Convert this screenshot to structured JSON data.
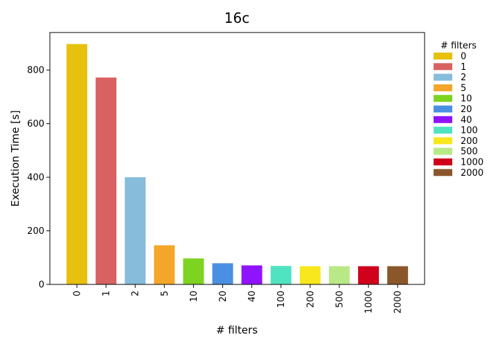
{
  "chart_data": {
    "type": "bar",
    "title": "16c",
    "xlabel": "# filters",
    "ylabel": "Execution Time [s]",
    "categories": [
      "0",
      "1",
      "2",
      "5",
      "10",
      "20",
      "40",
      "100",
      "200",
      "500",
      "1000",
      "2000"
    ],
    "values": [
      897,
      772,
      400,
      146,
      97,
      79,
      71,
      69,
      68,
      68,
      68,
      68
    ],
    "colors": [
      "#e8c00e",
      "#d86262",
      "#87bcdb",
      "#f4a62a",
      "#7ed321",
      "#4a90e2",
      "#9013fe",
      "#50e3c2",
      "#f8e71c",
      "#b8e986",
      "#d0021b",
      "#8b572a"
    ],
    "ylim": [
      0,
      940
    ],
    "yticks": [
      0,
      200,
      400,
      600,
      800
    ],
    "ytick_labels": [
      "0",
      "200",
      "400",
      "600",
      "800"
    ],
    "grid": false,
    "legend": {
      "title": "# filters",
      "placement": "outside-right-top",
      "entries": [
        "0",
        "1",
        "2",
        "5",
        "10",
        "20",
        "40",
        "100",
        "200",
        "500",
        "1000",
        "2000"
      ]
    }
  }
}
